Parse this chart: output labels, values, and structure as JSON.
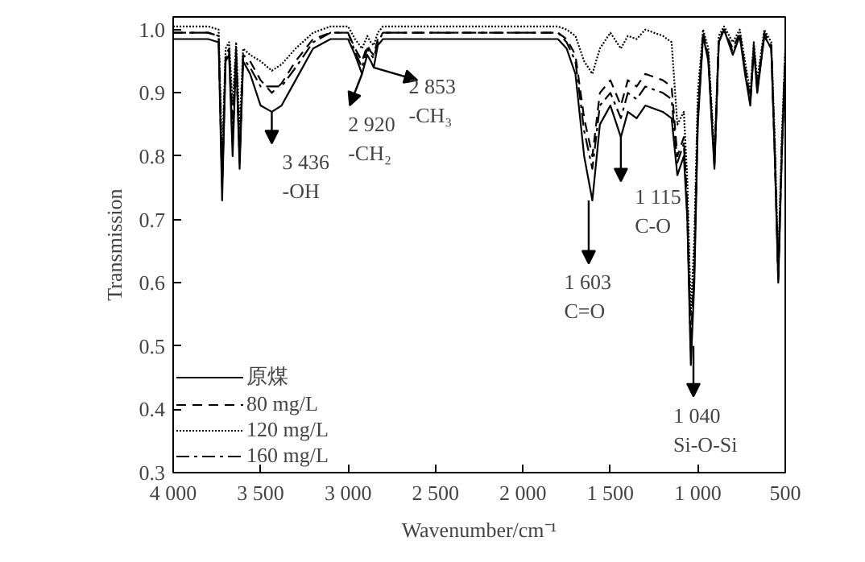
{
  "chart_data": {
    "type": "line",
    "xlabel": "Wavenumber/cm⁻¹",
    "ylabel": "Transmission",
    "x": [
      4000,
      3800,
      3740,
      3720,
      3700,
      3680,
      3660,
      3640,
      3620,
      3600,
      3560,
      3500,
      3436,
      3380,
      3300,
      3200,
      3100,
      3000,
      2960,
      2920,
      2890,
      2870,
      2853,
      2830,
      2800,
      2600,
      2200,
      1800,
      1750,
      1700,
      1650,
      1603,
      1560,
      1500,
      1440,
      1400,
      1350,
      1300,
      1200,
      1150,
      1117,
      1080,
      1060,
      1040,
      1020,
      1000,
      970,
      940,
      905,
      880,
      850,
      800,
      760,
      730,
      700,
      680,
      660,
      620,
      580,
      560,
      540,
      520,
      500
    ],
    "series": [
      {
        "name": "原煤",
        "color": "#000000",
        "line_style": "solid",
        "values": [
          0.985,
          0.985,
          0.98,
          0.73,
          0.95,
          0.96,
          0.8,
          0.96,
          0.78,
          0.95,
          0.93,
          0.88,
          0.87,
          0.88,
          0.92,
          0.97,
          0.985,
          0.985,
          0.96,
          0.93,
          0.96,
          0.95,
          0.94,
          0.975,
          0.985,
          0.985,
          0.985,
          0.985,
          0.97,
          0.93,
          0.8,
          0.73,
          0.85,
          0.88,
          0.83,
          0.87,
          0.86,
          0.88,
          0.87,
          0.86,
          0.77,
          0.8,
          0.7,
          0.47,
          0.6,
          0.85,
          0.99,
          0.95,
          0.78,
          0.98,
          1.0,
          0.96,
          0.99,
          0.93,
          0.88,
          0.97,
          0.9,
          0.99,
          0.97,
          0.8,
          0.6,
          0.8,
          0.95
        ]
      },
      {
        "name": "80 mg/L",
        "color": "#000000",
        "line_style": "dashed",
        "values": [
          0.995,
          0.995,
          0.99,
          0.76,
          0.96,
          0.97,
          0.84,
          0.97,
          0.8,
          0.96,
          0.95,
          0.92,
          0.9,
          0.915,
          0.95,
          0.985,
          0.995,
          0.995,
          0.97,
          0.95,
          0.975,
          0.965,
          0.96,
          0.985,
          0.995,
          0.995,
          0.995,
          0.995,
          0.985,
          0.96,
          0.86,
          0.8,
          0.9,
          0.92,
          0.88,
          0.92,
          0.91,
          0.93,
          0.92,
          0.91,
          0.8,
          0.83,
          0.72,
          0.5,
          0.63,
          0.87,
          0.995,
          0.96,
          0.79,
          0.985,
          1.0,
          0.97,
          0.995,
          0.94,
          0.89,
          0.975,
          0.91,
          0.995,
          0.975,
          0.81,
          0.61,
          0.81,
          0.96
        ]
      },
      {
        "name": "120 mg/L",
        "color": "#000000",
        "line_style": "dotted",
        "values": [
          1.005,
          1.005,
          1.0,
          0.8,
          0.97,
          0.98,
          0.88,
          0.98,
          0.84,
          0.97,
          0.96,
          0.95,
          0.935,
          0.945,
          0.97,
          0.995,
          1.005,
          1.005,
          0.985,
          0.97,
          0.99,
          0.98,
          0.975,
          0.995,
          1.005,
          1.005,
          1.005,
          1.005,
          1.0,
          0.99,
          0.95,
          0.93,
          0.97,
          0.995,
          0.97,
          0.99,
          0.985,
          1.0,
          0.99,
          0.98,
          0.85,
          0.87,
          0.76,
          0.55,
          0.67,
          0.9,
          1.0,
          0.97,
          0.8,
          0.99,
          1.005,
          0.98,
          1.0,
          0.95,
          0.9,
          0.98,
          0.92,
          1.0,
          0.98,
          0.83,
          0.63,
          0.83,
          0.97
        ]
      },
      {
        "name": "160 mg/L",
        "color": "#000000",
        "line_style": "dashdot",
        "values": [
          0.995,
          0.995,
          0.99,
          0.75,
          0.955,
          0.965,
          0.82,
          0.965,
          0.79,
          0.955,
          0.94,
          0.91,
          0.91,
          0.91,
          0.94,
          0.98,
          0.995,
          0.995,
          0.965,
          0.94,
          0.97,
          0.96,
          0.955,
          0.98,
          0.995,
          0.995,
          0.995,
          0.995,
          0.98,
          0.95,
          0.84,
          0.78,
          0.88,
          0.9,
          0.86,
          0.9,
          0.89,
          0.91,
          0.9,
          0.89,
          0.79,
          0.82,
          0.71,
          0.49,
          0.62,
          0.86,
          0.99,
          0.955,
          0.785,
          0.98,
          1.0,
          0.965,
          0.99,
          0.935,
          0.885,
          0.97,
          0.905,
          0.99,
          0.97,
          0.805,
          0.605,
          0.805,
          0.955
        ]
      }
    ],
    "xlim": [
      4000,
      500
    ],
    "xticks": [
      {
        "value": 4000,
        "label": "4 000"
      },
      {
        "value": 3500,
        "label": "3 500"
      },
      {
        "value": 3000,
        "label": "3 000"
      },
      {
        "value": 2500,
        "label": "2 500"
      },
      {
        "value": 2000,
        "label": "2 000"
      },
      {
        "value": 1500,
        "label": "1 500"
      },
      {
        "value": 1000,
        "label": "1 000"
      },
      500
    ],
    "ylim": [
      0.3,
      1.02
    ],
    "yticks": [
      0.3,
      0.4,
      0.5,
      0.6,
      0.7,
      0.8,
      0.9,
      {
        "value": 1.0,
        "label": "1.0"
      }
    ],
    "annotations": [
      {
        "text": "3 436\n-OH",
        "x": 3436,
        "y": 0.87
      },
      {
        "text": "2 920\n-CH₂",
        "x": 2920,
        "y": 0.93
      },
      {
        "text": "2 853\n-CH₃",
        "x": 2853,
        "y": 0.94
      },
      {
        "text": "1 603\nC=O",
        "x": 1624,
        "y": 0.73
      },
      {
        "text": "1 115\nC-O",
        "x": 1440,
        "y": 0.83
      },
      {
        "text": "1 040\nSi-O-Si",
        "x": 1025,
        "y": 0.5
      }
    ],
    "grid": false,
    "legend": "bottom left"
  }
}
